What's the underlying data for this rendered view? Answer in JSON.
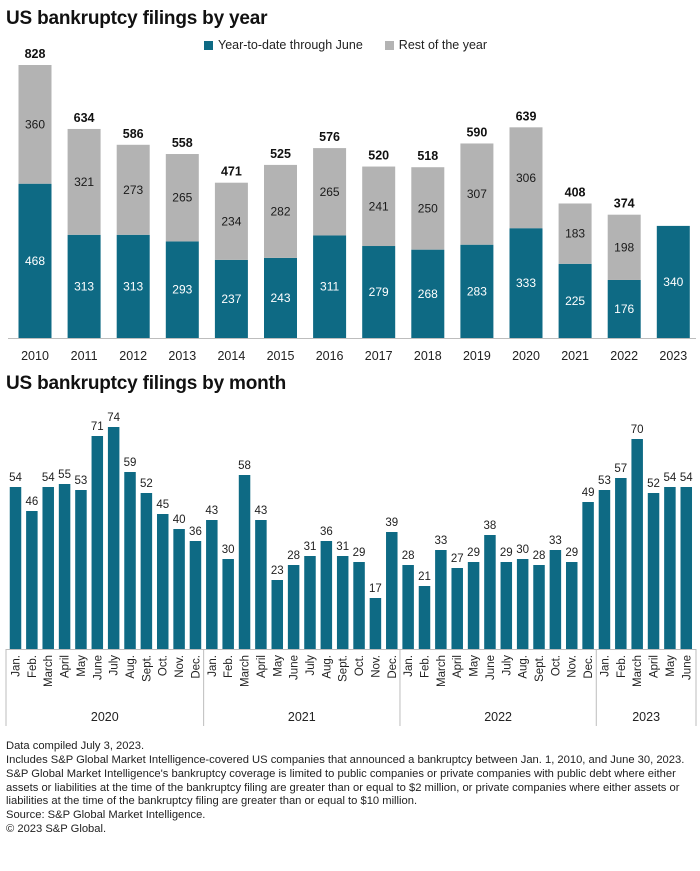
{
  "chart_data": [
    {
      "type": "bar",
      "stacked": true,
      "title": "US bankruptcy filings by year",
      "categories": [
        "2010",
        "2011",
        "2012",
        "2013",
        "2014",
        "2015",
        "2016",
        "2017",
        "2018",
        "2019",
        "2020",
        "2021",
        "2022",
        "2023"
      ],
      "series": [
        {
          "name": "Year-to-date through June",
          "color": "#0e6a84",
          "values": [
            468,
            313,
            313,
            293,
            237,
            243,
            311,
            279,
            268,
            283,
            333,
            225,
            176,
            340
          ]
        },
        {
          "name": "Rest of the year",
          "color": "#b3b3b3",
          "values": [
            360,
            321,
            273,
            265,
            234,
            282,
            265,
            241,
            250,
            307,
            306,
            183,
            198,
            null
          ]
        }
      ],
      "totals": [
        828,
        634,
        586,
        558,
        471,
        525,
        576,
        520,
        518,
        590,
        639,
        408,
        374,
        null
      ],
      "ylim": [
        0,
        900
      ],
      "legend_position": "top",
      "grid": false
    },
    {
      "type": "bar",
      "title": "US bankruptcy filings by month",
      "color": "#0e6a84",
      "groups": [
        {
          "year": "2020",
          "months": [
            "Jan.",
            "Feb.",
            "March",
            "April",
            "May",
            "June",
            "July",
            "Aug.",
            "Sept.",
            "Oct.",
            "Nov.",
            "Dec."
          ],
          "values": [
            54,
            46,
            54,
            55,
            53,
            71,
            74,
            59,
            52,
            45,
            40,
            36
          ]
        },
        {
          "year": "2021",
          "months": [
            "Jan.",
            "Feb.",
            "March",
            "April",
            "May",
            "June",
            "July",
            "Aug.",
            "Sept.",
            "Oct.",
            "Nov.",
            "Dec."
          ],
          "values": [
            43,
            30,
            58,
            43,
            23,
            28,
            31,
            36,
            31,
            29,
            17,
            39
          ]
        },
        {
          "year": "2022",
          "months": [
            "Jan.",
            "Feb.",
            "March",
            "April",
            "May",
            "June",
            "July",
            "Aug.",
            "Sept.",
            "Oct.",
            "Nov.",
            "Dec."
          ],
          "values": [
            28,
            21,
            33,
            27,
            29,
            38,
            29,
            30,
            28,
            33,
            29,
            49
          ]
        },
        {
          "year": "2023",
          "months": [
            "Jan.",
            "Feb.",
            "March",
            "April",
            "May",
            "June"
          ],
          "values": [
            53,
            57,
            70,
            52,
            54,
            54
          ]
        }
      ],
      "ylim": [
        0,
        80
      ],
      "grid": false
    }
  ],
  "notes": [
    "Data compiled July 3, 2023.",
    "Includes S&P Global Market Intelligence-covered US companies that announced a bankruptcy between Jan. 1, 2010, and June 30, 2023.",
    "S&P Global Market Intelligence's bankruptcy coverage is limited to public companies or private companies with public debt where either assets or liabilities at the time of the bankruptcy filing are greater than or equal to $2 million, or private companies where either assets or liabilities at the time of the bankruptcy filing are greater than or equal to $10 million.",
    "Source: S&P Global Market Intelligence.",
    "© 2023 S&P Global."
  ]
}
